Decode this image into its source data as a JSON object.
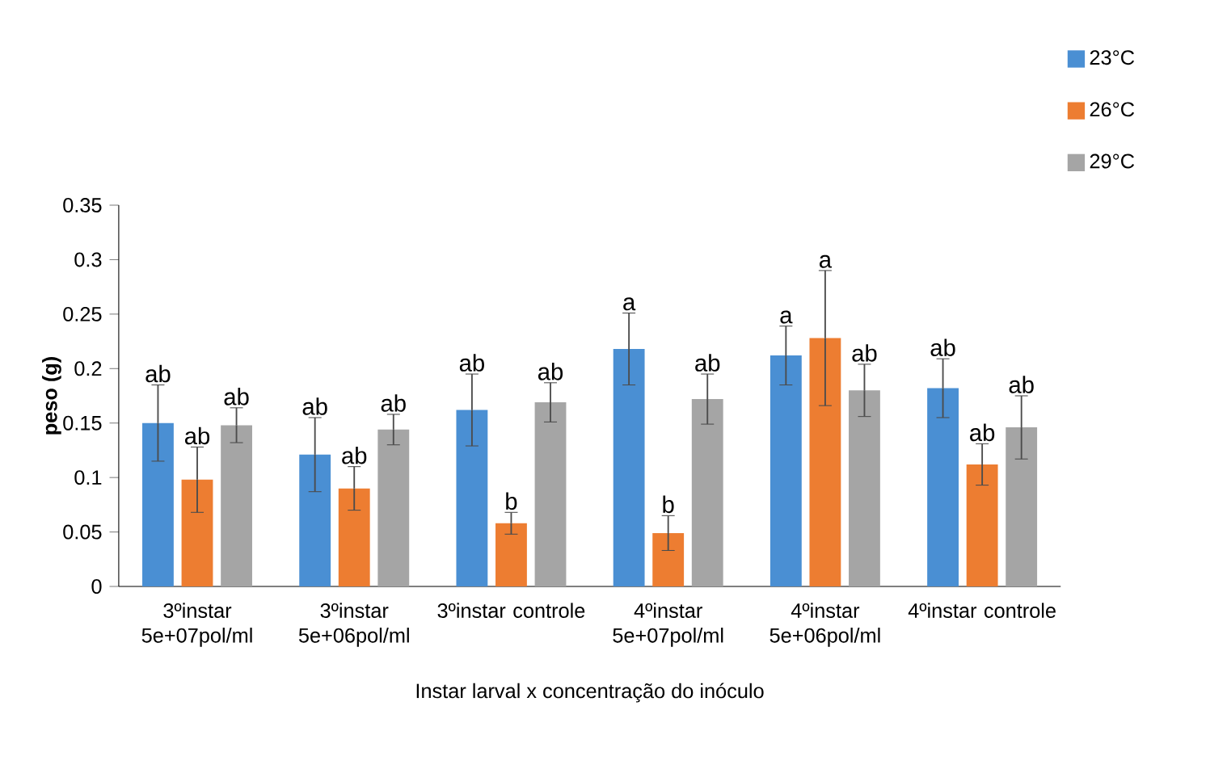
{
  "chart_data": {
    "type": "bar",
    "xlabel": "Instar larval x concentração do inóculo",
    "ylabel": "peso (g)",
    "categories": [
      "3ºinstar 5e+07pol/ml",
      "3ºinstar 5e+06pol/ml",
      "3ºinstar controle",
      "4ºinstar 5e+07pol/ml",
      "4ºinstar 5e+06pol/ml",
      "4ºinstar controle"
    ],
    "series": [
      {
        "name": "23°C",
        "color": "#4a8fd3",
        "values": [
          0.15,
          0.121,
          0.162,
          0.218,
          0.212,
          0.182
        ],
        "errors": [
          0.035,
          0.034,
          0.033,
          0.033,
          0.027,
          0.027
        ],
        "value_labels": [
          "ab",
          "ab",
          "ab",
          "a",
          "a",
          "ab"
        ]
      },
      {
        "name": "26°C",
        "color": "#ed7d31",
        "values": [
          0.098,
          0.09,
          0.058,
          0.049,
          0.228,
          0.112
        ],
        "errors": [
          0.03,
          0.02,
          0.01,
          0.016,
          0.062,
          0.019
        ],
        "value_labels": [
          "ab",
          "ab",
          "b",
          "b",
          "a",
          "ab"
        ]
      },
      {
        "name": "29°C",
        "color": "#a5a5a5",
        "values": [
          0.148,
          0.144,
          0.169,
          0.172,
          0.18,
          0.146
        ],
        "errors": [
          0.016,
          0.014,
          0.018,
          0.023,
          0.024,
          0.029
        ],
        "value_labels": [
          "ab",
          "ab",
          "ab",
          "ab",
          "ab",
          "ab"
        ]
      }
    ],
    "ylim": [
      0,
      0.35
    ],
    "yticks": [
      0,
      0.05,
      0.1,
      0.15,
      0.2,
      0.25,
      0.3,
      0.35
    ],
    "grid": false,
    "legend": "top right"
  }
}
